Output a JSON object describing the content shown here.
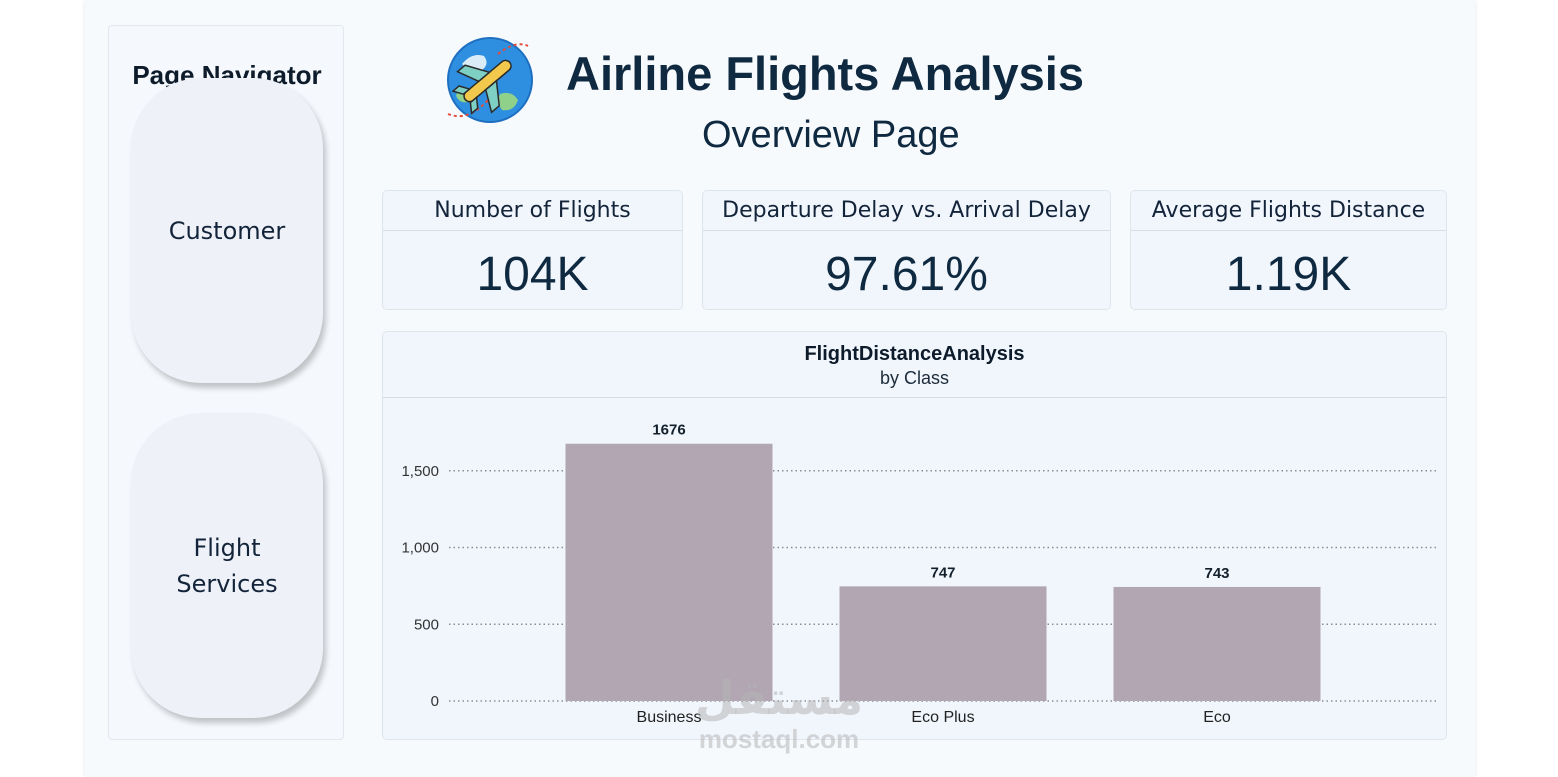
{
  "navigator": {
    "title": "Page Navigator",
    "items": [
      {
        "label": "Customer"
      },
      {
        "label": "Flight Services"
      }
    ]
  },
  "header": {
    "title": "Airline Flights Analysis",
    "subtitle": "Overview Page",
    "logo_icon": "globe-airplane-icon"
  },
  "kpis": [
    {
      "label": "Number of Flights",
      "value": "104K"
    },
    {
      "label": "Departure Delay vs. Arrival Delay",
      "value": "97.61%"
    },
    {
      "label": "Average Flights Distance",
      "value": "1.19K"
    }
  ],
  "chart_data": {
    "type": "bar",
    "title": "FlightDistanceAnalysis",
    "subtitle": "by Class",
    "categories": [
      "Business",
      "Eco Plus",
      "Eco"
    ],
    "values": [
      1676,
      747,
      743
    ],
    "data_labels": [
      "1676",
      "747",
      "743"
    ],
    "yticks": [
      0,
      500,
      1000,
      1500
    ],
    "ytick_labels": [
      "0",
      "500",
      "1,000",
      "1,500"
    ],
    "ylim": [
      0,
      1800
    ],
    "grid": true,
    "bar_color": "#b1a6b2"
  },
  "watermark": {
    "arabic": "مستقل",
    "latin": "mostaql.com"
  }
}
